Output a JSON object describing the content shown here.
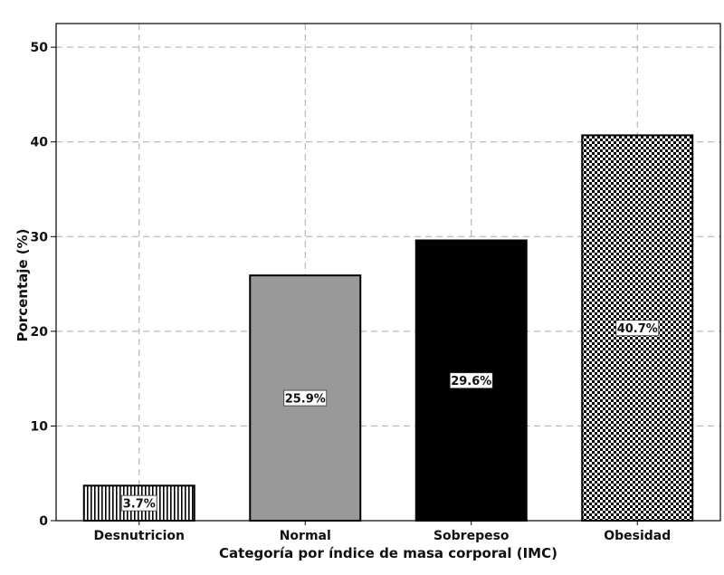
{
  "chart_data": {
    "type": "bar",
    "title": "",
    "xlabel": "Categoría por índice de masa corporal (IMC)",
    "ylabel": "Porcentaje (%)",
    "ylim": [
      0,
      52.5
    ],
    "yticks": [
      0,
      10,
      20,
      30,
      40,
      50
    ],
    "grid": true,
    "categories": [
      "Desnutricion",
      "Normal",
      "Sobrepeso",
      "Obesidad"
    ],
    "values": [
      3.7,
      25.9,
      29.6,
      40.7
    ],
    "data_labels": [
      "3.7%",
      "25.9%",
      "29.6%",
      "40.7%"
    ],
    "bar_styles": [
      "vertical-lines",
      "gray",
      "black",
      "checker"
    ],
    "colors": {
      "gray": "#999999",
      "black": "#000000",
      "border": "#000000",
      "grid": "#aaaaaa"
    }
  }
}
